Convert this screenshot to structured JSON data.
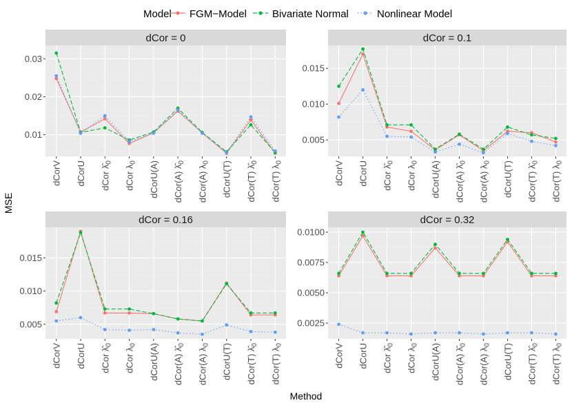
{
  "legend": {
    "title": "Model",
    "items": [
      {
        "name": "FGM−Model",
        "color": "#F8766D",
        "dash": "solid"
      },
      {
        "name": "Bivariate Normal",
        "color": "#00BA38",
        "dash": "dashed"
      },
      {
        "name": "Nonlinear Model",
        "color": "#619CFF",
        "dash": "dotted"
      }
    ]
  },
  "xlabel": "Method",
  "ylabel": "MSE",
  "chart_data": [
    {
      "type": "line",
      "title": "dCor = 0",
      "strip": {
        "base": "dCor",
        "value": "0"
      },
      "categories": [
        "dCorV",
        "dCorU",
        "dCor λ̂0",
        "dCor λ0",
        "dCorU(A)",
        "dCor(A) λ̂0",
        "dCor(A) λ0",
        "dCorU(T)",
        "dCor(T) λ̂0",
        "dCor(T) λ0"
      ],
      "ylim": [
        0.0043,
        0.0335
      ],
      "yticks": [
        0.01,
        0.02,
        0.03
      ],
      "ytick_labels": [
        "0.01",
        "0.02",
        "0.03"
      ],
      "series": [
        {
          "name": "FGM−Model",
          "values": [
            0.0248,
            0.0107,
            0.0142,
            0.0077,
            0.0105,
            0.0162,
            0.0105,
            0.0051,
            0.0139,
            0.0051
          ]
        },
        {
          "name": "Bivariate Normal",
          "values": [
            0.0315,
            0.0106,
            0.0118,
            0.0086,
            0.0107,
            0.017,
            0.0106,
            0.0055,
            0.0126,
            0.0053
          ]
        },
        {
          "name": "Nonlinear Model",
          "values": [
            0.0255,
            0.0104,
            0.015,
            0.0082,
            0.0104,
            0.0165,
            0.0104,
            0.0053,
            0.0147,
            0.0057
          ]
        }
      ]
    },
    {
      "type": "line",
      "title": "dCor = 0.1",
      "strip": {
        "base": "dCor",
        "value": "0.1"
      },
      "categories": [
        "dCorV",
        "dCorU",
        "dCor λ̂0",
        "dCor λ0",
        "dCorU(A)",
        "dCor(A) λ̂0",
        "dCor(A) λ0",
        "dCorU(T)",
        "dCor(T) λ̂0",
        "dCor(T) λ0"
      ],
      "ylim": [
        0.0027,
        0.0182
      ],
      "yticks": [
        0.005,
        0.01,
        0.015
      ],
      "ytick_labels": [
        "0.005",
        "0.010",
        "0.015"
      ],
      "series": [
        {
          "name": "FGM−Model",
          "values": [
            0.0101,
            0.017,
            0.0068,
            0.0062,
            0.0036,
            0.0057,
            0.0035,
            0.0062,
            0.006,
            0.0047
          ]
        },
        {
          "name": "Bivariate Normal",
          "values": [
            0.0125,
            0.0177,
            0.0071,
            0.0071,
            0.0037,
            0.0058,
            0.0037,
            0.0068,
            0.0057,
            0.0052
          ]
        },
        {
          "name": "Nonlinear Model",
          "values": [
            0.0082,
            0.012,
            0.0055,
            0.0054,
            0.0033,
            0.0044,
            0.0032,
            0.0059,
            0.0048,
            0.0042
          ]
        }
      ]
    },
    {
      "type": "line",
      "title": "dCor = 0.16",
      "strip": {
        "base": "dCor",
        "value": "0.16"
      },
      "categories": [
        "dCorV",
        "dCorU",
        "dCor λ̂0",
        "dCor λ0",
        "dCorU(A)",
        "dCor(A) λ̂0",
        "dCor(A) λ0",
        "dCorU(T)",
        "dCor(T) λ̂0",
        "dCor(T) λ0"
      ],
      "ylim": [
        0.0028,
        0.0196
      ],
      "yticks": [
        0.005,
        0.01,
        0.015
      ],
      "ytick_labels": [
        "0.005",
        "0.010",
        "0.015"
      ],
      "series": [
        {
          "name": "FGM−Model",
          "values": [
            0.0069,
            0.019,
            0.0067,
            0.0067,
            0.0066,
            0.0058,
            0.0055,
            0.0112,
            0.0064,
            0.0064
          ]
        },
        {
          "name": "Bivariate Normal",
          "values": [
            0.0082,
            0.0188,
            0.0073,
            0.0073,
            0.0066,
            0.0058,
            0.0055,
            0.0111,
            0.0067,
            0.0067
          ]
        },
        {
          "name": "Nonlinear Model",
          "values": [
            0.0055,
            0.006,
            0.0042,
            0.0041,
            0.0042,
            0.0037,
            0.0035,
            0.0049,
            0.0039,
            0.0038
          ]
        }
      ]
    },
    {
      "type": "line",
      "title": "dCor = 0.32",
      "strip": {
        "base": "dCor",
        "value": "0.32"
      },
      "categories": [
        "dCorV",
        "dCorU",
        "dCor λ̂0",
        "dCor λ0",
        "dCorU(A)",
        "dCor(A) λ̂0",
        "dCor(A) λ0",
        "dCorU(T)",
        "dCor(T) λ̂0",
        "dCor(T) λ0"
      ],
      "ylim": [
        0.0012,
        0.0104
      ],
      "yticks": [
        0.0025,
        0.005,
        0.0075,
        0.01
      ],
      "ytick_labels": [
        "0.0025",
        "0.0050",
        "0.0075",
        "0.0100"
      ],
      "series": [
        {
          "name": "FGM−Model",
          "values": [
            0.0064,
            0.0097,
            0.0064,
            0.0064,
            0.0087,
            0.0064,
            0.0064,
            0.0092,
            0.0064,
            0.0064
          ]
        },
        {
          "name": "Bivariate Normal",
          "values": [
            0.0066,
            0.01,
            0.0066,
            0.0066,
            0.009,
            0.0066,
            0.0066,
            0.0094,
            0.0066,
            0.0066
          ]
        },
        {
          "name": "Nonlinear Model",
          "values": [
            0.0024,
            0.0017,
            0.0017,
            0.0016,
            0.0017,
            0.0017,
            0.0016,
            0.0017,
            0.0017,
            0.0016
          ]
        }
      ]
    }
  ]
}
